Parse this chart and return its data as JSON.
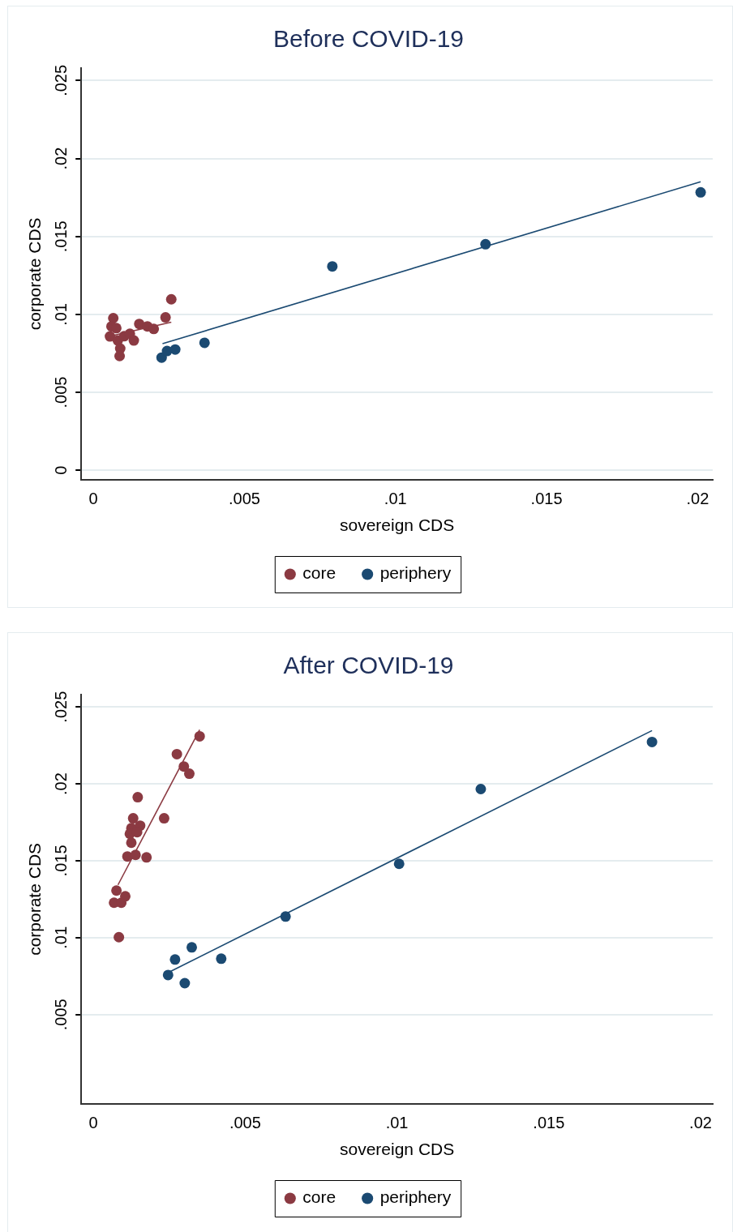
{
  "chart_data": [
    {
      "type": "scatter",
      "title": "Before COVID-19",
      "xlabel": "sovereign CDS",
      "ylabel": "corporate CDS",
      "xlim": [
        -0.0004,
        0.0205
      ],
      "xticks": [
        {
          "value": 0,
          "label": "0"
        },
        {
          "value": 0.005,
          "label": ".005"
        },
        {
          "value": 0.01,
          "label": ".01"
        },
        {
          "value": 0.015,
          "label": ".015"
        },
        {
          "value": 0.02,
          "label": ".02"
        }
      ],
      "ylim": [
        -0.0006,
        0.0258
      ],
      "yticks": [
        {
          "value": 0,
          "label": "0"
        },
        {
          "value": 0.005,
          "label": ".005"
        },
        {
          "value": 0.01,
          "label": ".01"
        },
        {
          "value": 0.015,
          "label": ".015"
        },
        {
          "value": 0.02,
          "label": ".02"
        },
        {
          "value": 0.025,
          "label": ".025"
        }
      ],
      "grid": "y",
      "legend": "bottom",
      "series": [
        {
          "name": "core",
          "marker": "circle",
          "color": "#8b3a42",
          "x": [
            0.00066,
            0.0006,
            0.00055,
            0.00076,
            0.00081,
            0.00089,
            0.00087,
            0.00102,
            0.00121,
            0.00134,
            0.00152,
            0.00179,
            0.002,
            0.00239,
            0.00258
          ],
          "values": [
            0.00976,
            0.00923,
            0.00859,
            0.00912,
            0.00833,
            0.00781,
            0.00733,
            0.0086,
            0.00876,
            0.00833,
            0.00939,
            0.00923,
            0.00907,
            0.00981,
            0.01097
          ]
        },
        {
          "name": "periphery",
          "marker": "circle",
          "color": "#1b4a72",
          "x": [
            0.00226,
            0.00244,
            0.00271,
            0.00368,
            0.00791,
            0.01298,
            0.0201
          ],
          "values": [
            0.00723,
            0.00765,
            0.00775,
            0.00818,
            0.01308,
            0.0145,
            0.01783
          ]
        },
        {
          "type": "line",
          "color": "#8b3a42",
          "x": [
            0.00055,
            0.00258
          ],
          "values": [
            0.0086,
            0.0095
          ]
        },
        {
          "type": "line",
          "color": "#1b4a72",
          "x": [
            0.00229,
            0.0201
          ],
          "values": [
            0.00812,
            0.01851
          ]
        }
      ]
    },
    {
      "type": "scatter",
      "title": "After COVID-19",
      "xlabel": "sovereign CDS",
      "ylabel": "corporate CDS",
      "xlim": [
        -0.0004,
        0.0204
      ],
      "xticks": [
        {
          "value": 0,
          "label": "0"
        },
        {
          "value": 0.005,
          "label": ".005"
        },
        {
          "value": 0.01,
          "label": ".01"
        },
        {
          "value": 0.015,
          "label": ".015"
        },
        {
          "value": 0.02,
          "label": ".02"
        }
      ],
      "ylim": [
        -0.0008,
        0.0258
      ],
      "yticks": [
        {
          "value": 0.005,
          "label": ".005"
        },
        {
          "value": 0.01,
          "label": ".01"
        },
        {
          "value": 0.015,
          "label": ".015"
        },
        {
          "value": 0.02,
          "label": ".02"
        },
        {
          "value": 0.025,
          "label": ".025"
        }
      ],
      "grid": "y",
      "legend": "bottom",
      "series": [
        {
          "name": "core",
          "marker": "circle",
          "color": "#8b3a42",
          "x": [
            0.0035,
            0.00275,
            0.00298,
            0.00316,
            0.00146,
            0.00233,
            0.00131,
            0.00154,
            0.00125,
            0.0012,
            0.00144,
            0.00125,
            0.00112,
            0.00139,
            0.00175,
            0.00076,
            0.00068,
            0.00092,
            0.00105,
            0.00084
          ],
          "values": [
            0.02309,
            0.02193,
            0.02113,
            0.02066,
            0.01913,
            0.01776,
            0.01776,
            0.01728,
            0.01712,
            0.01675,
            0.01686,
            0.01617,
            0.01528,
            0.01538,
            0.01522,
            0.01306,
            0.01227,
            0.01227,
            0.01269,
            0.01003
          ]
        },
        {
          "name": "periphery",
          "marker": "circle",
          "color": "#1b4a72",
          "x": [
            0.00246,
            0.00269,
            0.00324,
            0.00301,
            0.00421,
            0.00633,
            0.01007,
            0.01276,
            0.0184
          ],
          "values": [
            0.00757,
            0.00858,
            0.00937,
            0.00704,
            0.00863,
            0.01137,
            0.0148,
            0.01966,
            0.02272
          ]
        },
        {
          "type": "line",
          "color": "#8b3a42",
          "x": [
            0.00081,
            0.0035
          ],
          "values": [
            0.01343,
            0.02351
          ]
        },
        {
          "type": "line",
          "color": "#1b4a72",
          "x": [
            0.00246,
            0.0184
          ],
          "values": [
            0.00773,
            0.02346
          ]
        }
      ]
    }
  ]
}
